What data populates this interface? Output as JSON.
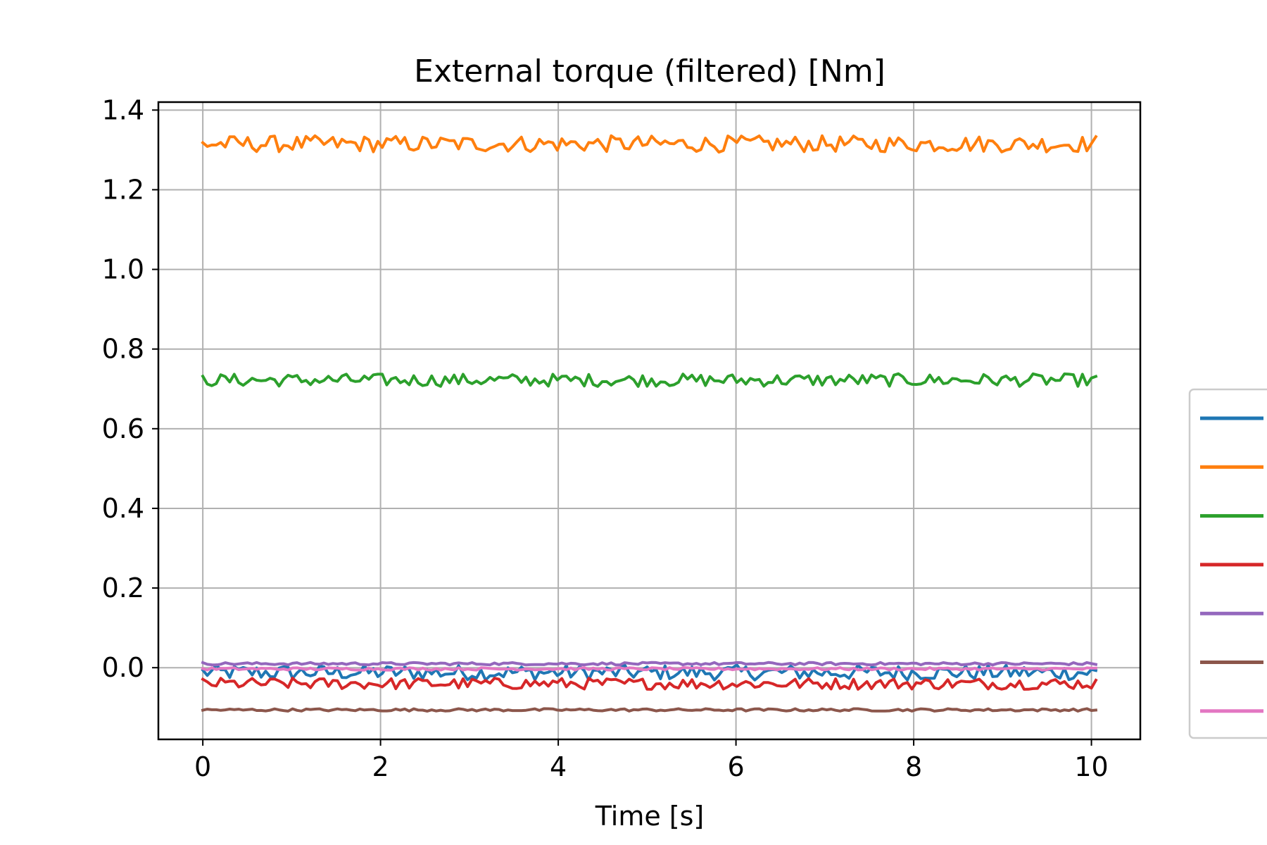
{
  "chart_data": {
    "type": "line",
    "title": "External torque (filtered) [Nm]",
    "xlabel": "Time [s]",
    "ylabel": "",
    "xlim": [
      -0.5,
      10.55
    ],
    "ylim": [
      -0.18,
      1.42
    ],
    "xticks": [
      0,
      2,
      4,
      6,
      8,
      10
    ],
    "xtick_labels": [
      "0",
      "2",
      "4",
      "6",
      "8",
      "10"
    ],
    "yticks": [
      0.0,
      0.2,
      0.4,
      0.6,
      0.8,
      1.0,
      1.2,
      1.4
    ],
    "ytick_labels": [
      "0.0",
      "0.2",
      "0.4",
      "0.6",
      "0.8",
      "1.0",
      "1.2",
      "1.4"
    ],
    "grid": true,
    "legend_position": "right, partially cut off",
    "x_range": [
      0,
      10.05
    ],
    "samples": 200,
    "series": [
      {
        "color": "#1f77b4",
        "base": -0.012,
        "amplitude": 0.012
      },
      {
        "color": "#ff7f0e",
        "base": 1.315,
        "amplitude": 0.013
      },
      {
        "color": "#2ca02c",
        "base": 0.722,
        "amplitude": 0.01
      },
      {
        "color": "#d62728",
        "base": -0.04,
        "amplitude": 0.009
      },
      {
        "color": "#9467bd",
        "base": 0.01,
        "amplitude": 0.002
      },
      {
        "color": "#8c564b",
        "base": -0.106,
        "amplitude": 0.002
      },
      {
        "color": "#e377c2",
        "base": -0.003,
        "amplitude": 0.002
      }
    ]
  }
}
